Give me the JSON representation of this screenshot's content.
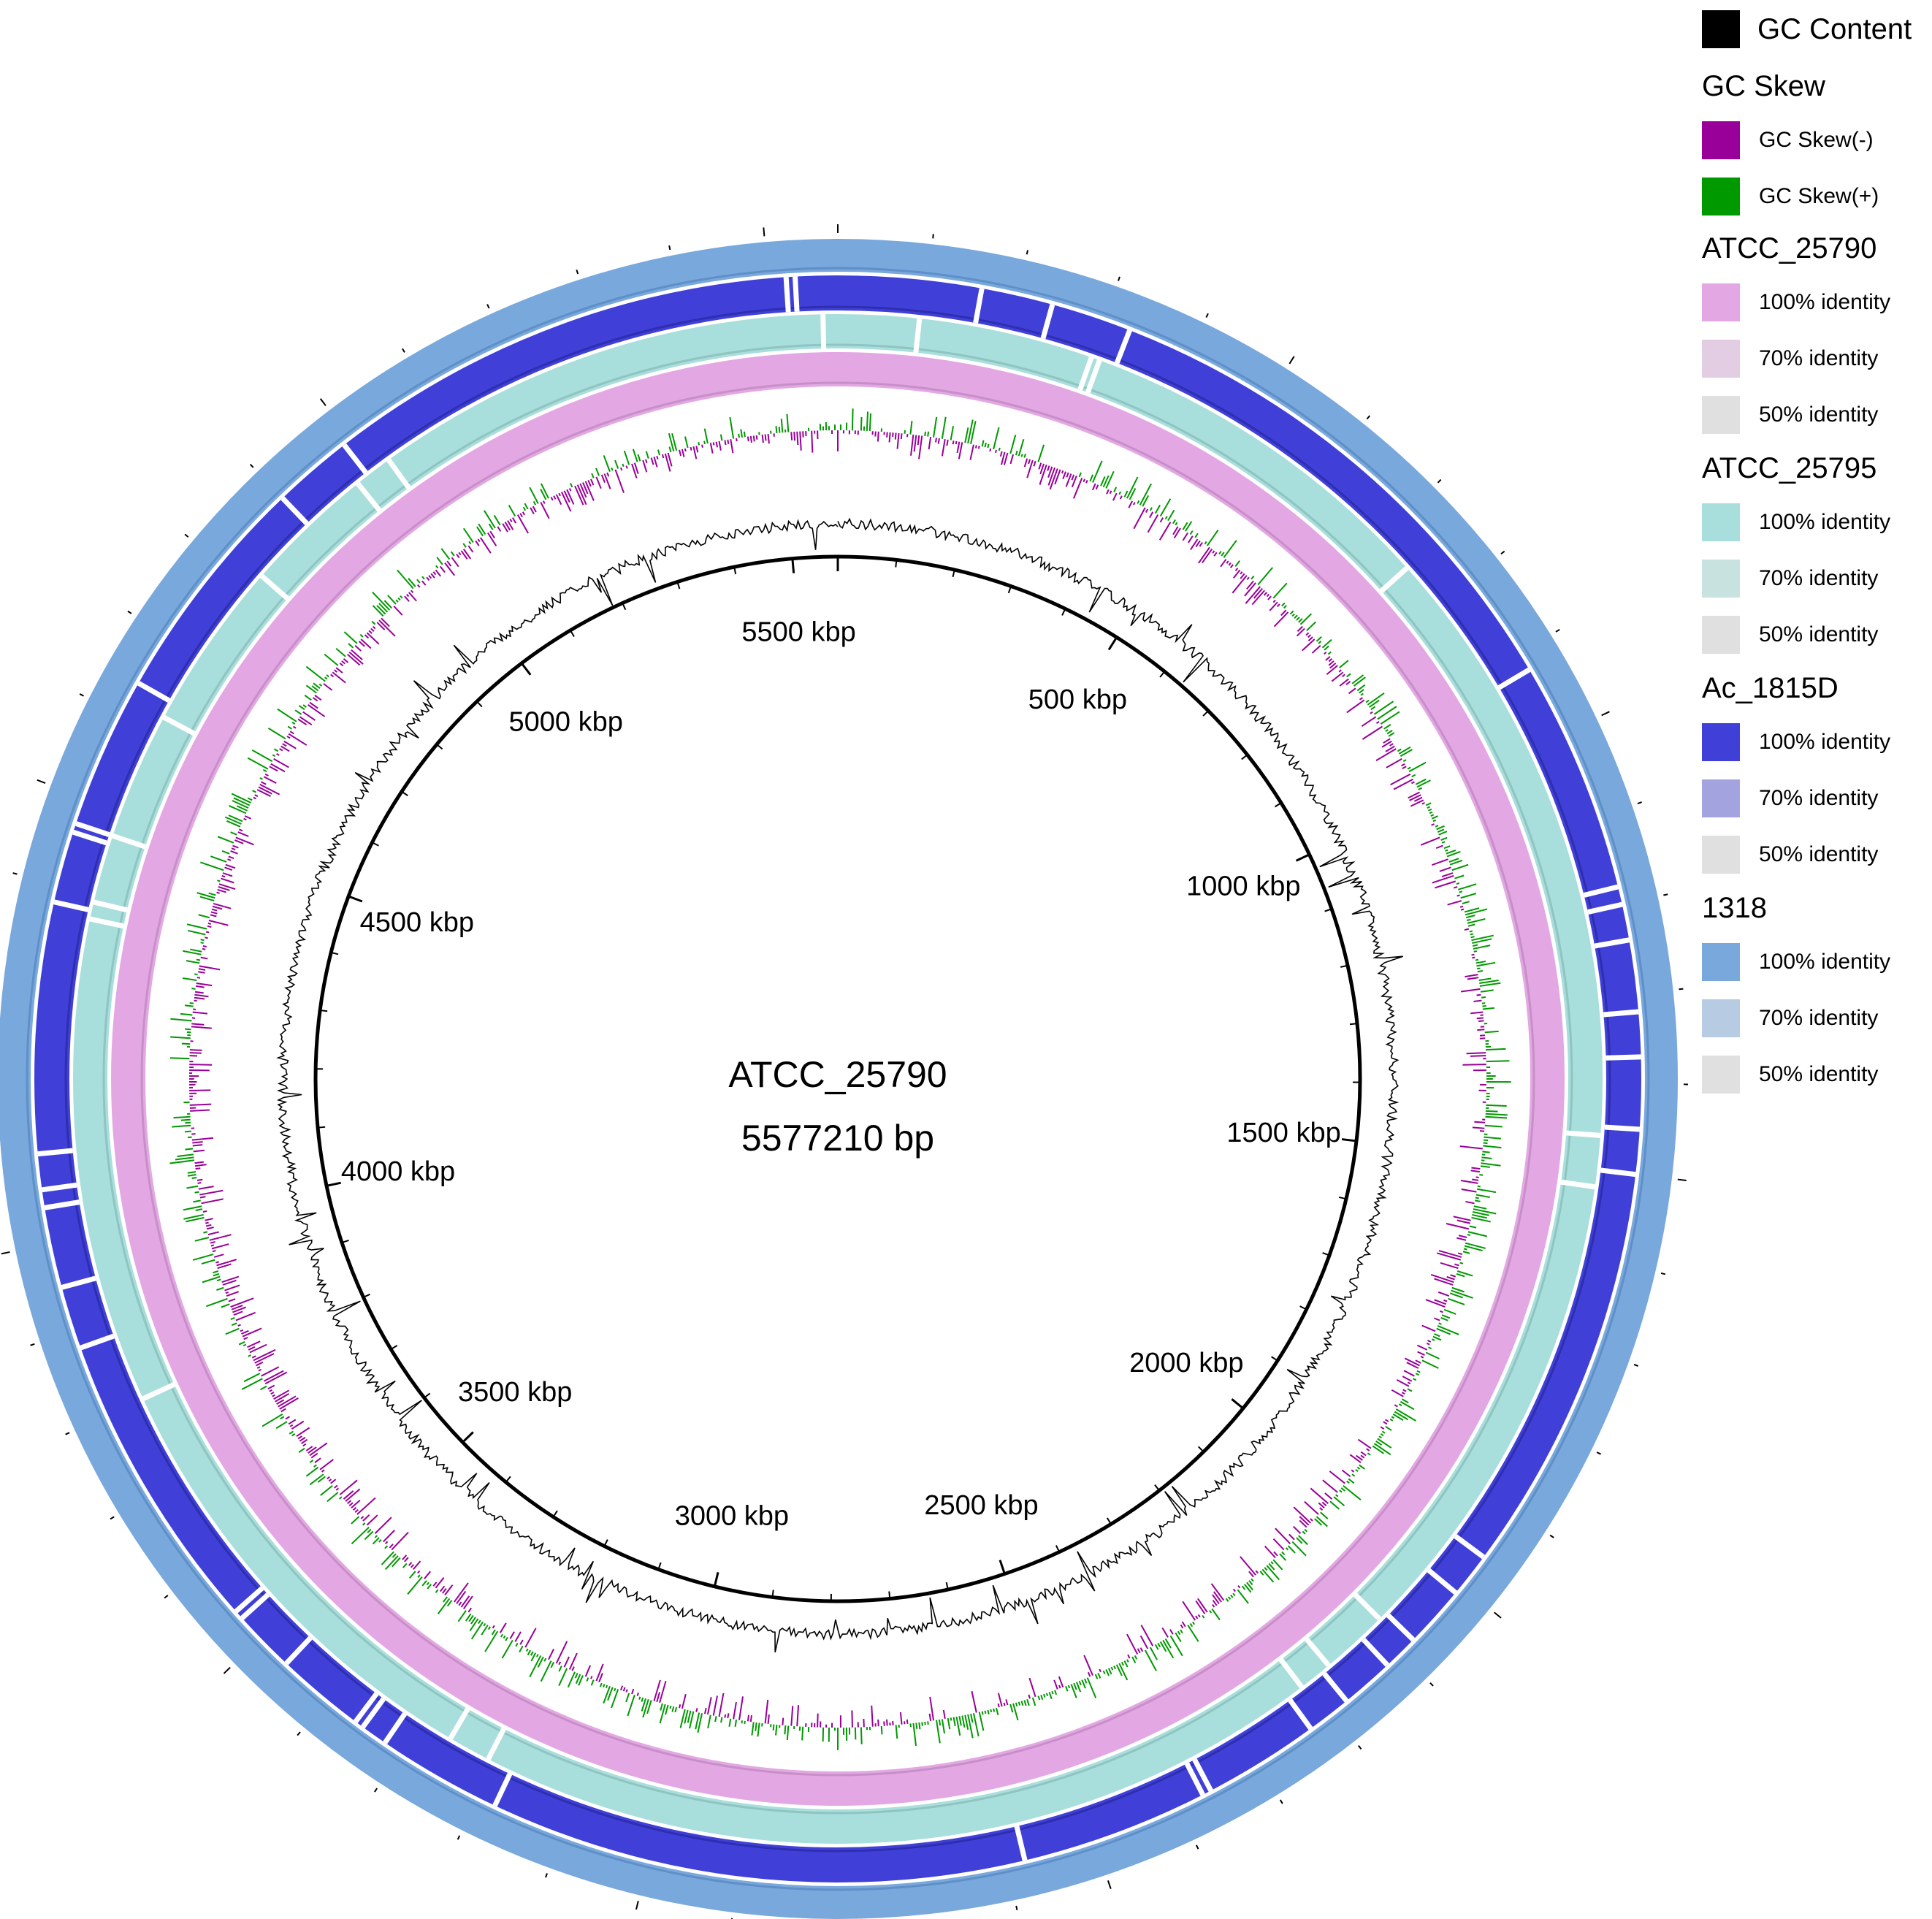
{
  "genome": {
    "name": "ATCC_25790",
    "length_label": "5577210 bp",
    "length_bp": 5577210
  },
  "scale_labels": [
    {
      "text": "5500 kbp",
      "kbp": 5500
    },
    {
      "text": "500 kbp",
      "kbp": 500
    },
    {
      "text": "1000 kbp",
      "kbp": 1000
    },
    {
      "text": "1500 kbp",
      "kbp": 1500
    },
    {
      "text": "2000 kbp",
      "kbp": 2000
    },
    {
      "text": "2500 kbp",
      "kbp": 2500
    },
    {
      "text": "3000 kbp",
      "kbp": 3000
    },
    {
      "text": "3500 kbp",
      "kbp": 3500
    },
    {
      "text": "4000 kbp",
      "kbp": 4000
    },
    {
      "text": "4500 kbp",
      "kbp": 4500
    },
    {
      "text": "5000 kbp",
      "kbp": 5000
    }
  ],
  "rings": [
    {
      "track": "GC Content",
      "color": "#000000"
    },
    {
      "track": "GC Skew",
      "neg_color": "#990099",
      "pos_color": "#009900"
    },
    {
      "track": "ATCC_25790",
      "color": "#e3a8e3"
    },
    {
      "track": "ATCC_25795",
      "color": "#a8dedb"
    },
    {
      "track": "Ac_1815D",
      "color": "#4040d8"
    },
    {
      "track": "1318",
      "color": "#79a8dc"
    }
  ],
  "blast_gaps": {
    "ATCC_25795": [
      95,
      300,
      310,
      745,
      1460,
      1520,
      2090,
      2170,
      2210,
      3210,
      3260,
      3800,
      4370,
      4390,
      4470,
      4620,
      4820,
      4975,
      5020,
      5560
    ],
    "Ac_1815D": [
      160,
      240,
      330,
      920,
      1180,
      1200,
      1240,
      1320,
      1370,
      1450,
      1500,
      1960,
      2010,
      2080,
      2120,
      2180,
      2230,
      2360,
      2370,
      2580,
      3180,
      3320,
      3350,
      3360,
      3460,
      3530,
      3540,
      3880,
      3950,
      4040,
      4060,
      4100,
      4380,
      4460,
      4470,
      4640,
      4900,
      4990,
      5520,
      5530
    ],
    "1318": []
  },
  "legend": {
    "gc_content": {
      "label": "GC Content",
      "color": "#000000"
    },
    "gc_skew": {
      "heading": "GC Skew",
      "items": [
        {
          "label": "GC Skew(-)",
          "color": "#990099"
        },
        {
          "label": "GC Skew(+)",
          "color": "#009900"
        }
      ]
    },
    "groups": [
      {
        "heading": "ATCC_25790",
        "items": [
          {
            "label": "100% identity",
            "color": "#e3a8e3"
          },
          {
            "label": "70% identity",
            "color": "#e2cde2"
          },
          {
            "label": "50% identity",
            "color": "#e0e0e0"
          }
        ]
      },
      {
        "heading": "ATCC_25795",
        "items": [
          {
            "label": "100% identity",
            "color": "#a8dedb"
          },
          {
            "label": "70% identity",
            "color": "#c7e2df"
          },
          {
            "label": "50% identity",
            "color": "#e0e0e0"
          }
        ]
      },
      {
        "heading": "Ac_1815D",
        "items": [
          {
            "label": "100% identity",
            "color": "#4040d8"
          },
          {
            "label": "70% identity",
            "color": "#a3a3e0"
          },
          {
            "label": "50% identity",
            "color": "#e0e0e0"
          }
        ]
      },
      {
        "heading": "1318",
        "items": [
          {
            "label": "100% identity",
            "color": "#79a8dc"
          },
          {
            "label": "70% identity",
            "color": "#b7cbe2"
          },
          {
            "label": "50% identity",
            "color": "#e0e0e0"
          }
        ]
      }
    ]
  }
}
